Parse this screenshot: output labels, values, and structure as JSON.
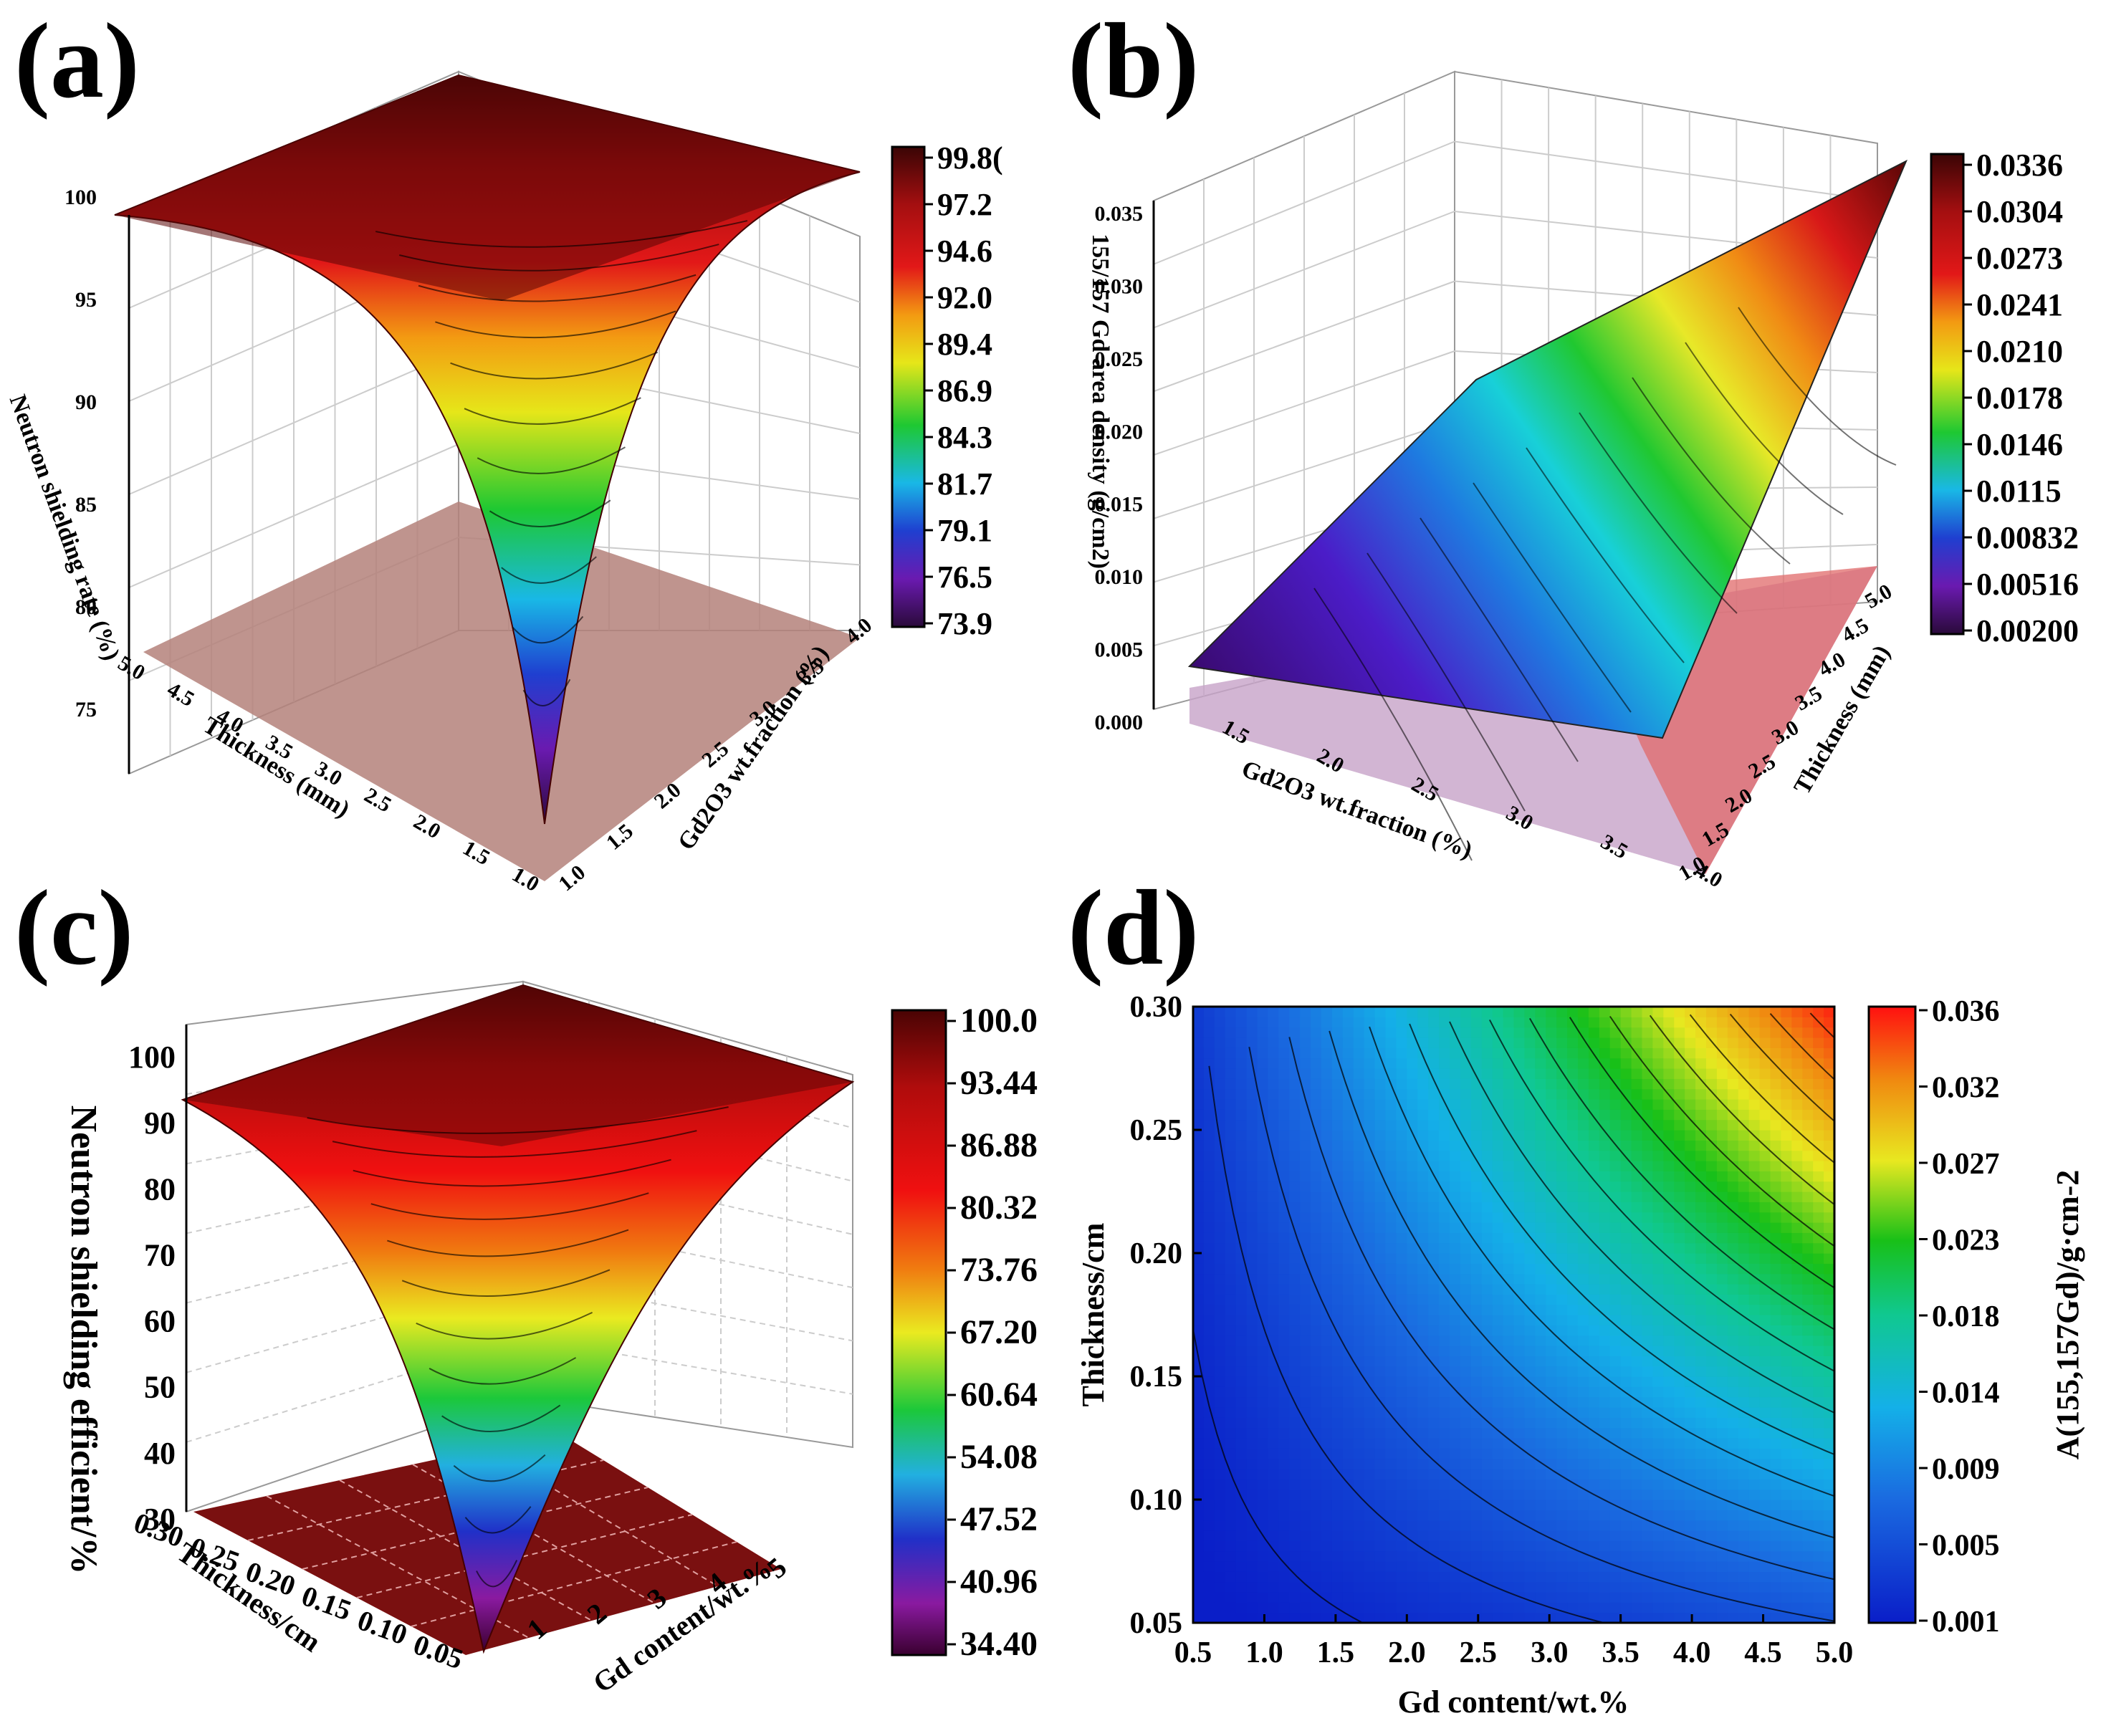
{
  "panels": {
    "a": {
      "label": "(a)",
      "zlabel": "Neutron shielding rate (%)",
      "xlabel": "Thickness (mm)",
      "ylabel": "Gd2O3 wt.fraction (%)",
      "z_ticks": [
        "100",
        "95",
        "90",
        "85",
        "80",
        "75"
      ],
      "x_ticks": [
        "5.0",
        "4.5",
        "4.0",
        "3.5",
        "3.0",
        "2.5",
        "2.0",
        "1.5",
        "1.0"
      ],
      "y_ticks": [
        "1.0",
        "1.5",
        "2.0",
        "2.5",
        "3.0",
        "3.5",
        "4.0"
      ],
      "colorbar": [
        "99.8(",
        "97.2",
        "94.6",
        "92.0",
        "89.4",
        "86.9",
        "84.3",
        "81.7",
        "79.1",
        "76.5",
        "73.9"
      ]
    },
    "b": {
      "label": "(b)",
      "zlabel": "155/157 Gd area density (g/cm2)",
      "xlabel": "Gd2O3 wt.fraction (%)",
      "ylabel": "Thickness (mm)",
      "z_ticks": [
        "0.035",
        "0.030",
        "0.025",
        "0.020",
        "0.015",
        "0.010",
        "0.005",
        "0.000"
      ],
      "x_ticks": [
        "1.5",
        "2.0",
        "2.5",
        "3.0",
        "3.5",
        "4.0"
      ],
      "y_ticks": [
        "1.0",
        "1.5",
        "2.0",
        "2.5",
        "3.0",
        "3.5",
        "4.0",
        "4.5",
        "5.0"
      ],
      "colorbar": [
        "0.0336",
        "0.0304",
        "0.0273",
        "0.0241",
        "0.0210",
        "0.0178",
        "0.0146",
        "0.0115",
        "0.00832",
        "0.00516",
        "0.00200"
      ]
    },
    "c": {
      "label": "(c)",
      "zlabel": "Neutron shielding efficient/%",
      "xlabel": "Thickness/cm",
      "ylabel": "Gd content/wt.%",
      "z_ticks": [
        "100",
        "90",
        "80",
        "70",
        "60",
        "50",
        "40",
        "30"
      ],
      "x_ticks": [
        "0.30",
        "0.25",
        "0.20",
        "0.15",
        "0.10",
        "0.05"
      ],
      "y_ticks": [
        "1",
        "2",
        "3",
        "4",
        "5"
      ],
      "colorbar": [
        "100.0",
        "93.44",
        "86.88",
        "80.32",
        "73.76",
        "67.20",
        "60.64",
        "54.08",
        "47.52",
        "40.96",
        "34.40"
      ]
    },
    "d": {
      "label": "(d)",
      "xlabel": "Gd content/wt.%",
      "ylabel": "Thickness/cm",
      "cblabel": "A(155,157Gd)/g·cm-2",
      "x_ticks": [
        "0.5",
        "1.0",
        "1.5",
        "2.0",
        "2.5",
        "3.0",
        "3.5",
        "4.0",
        "4.5",
        "5.0"
      ],
      "y_ticks": [
        "0.30",
        "0.25",
        "0.20",
        "0.15",
        "0.10",
        "0.05"
      ],
      "colorbar": [
        "0.036",
        "0.032",
        "0.027",
        "0.023",
        "0.018",
        "0.014",
        "0.009",
        "0.005",
        "0.001"
      ]
    }
  },
  "chart_data": [
    {
      "panel": "a",
      "type": "surface3d",
      "title": "",
      "x_name": "Thickness (mm)",
      "x_range": [
        1.0,
        5.0
      ],
      "y_name": "Gd2O3 wt.fraction (%)",
      "y_range": [
        1.0,
        4.0
      ],
      "z_name": "Neutron shielding rate (%)",
      "z_range": [
        73.9,
        99.8
      ],
      "corner_values": {
        "x1_y1": 73.9,
        "x5_y1": 98.6,
        "x1_y4": 98.6,
        "x5_y4": 99.8
      }
    },
    {
      "panel": "b",
      "type": "surface3d",
      "x_name": "Gd2O3 wt.fraction (%)",
      "x_range": [
        1.0,
        4.0
      ],
      "y_name": "Thickness (mm)",
      "y_range": [
        1.0,
        5.0
      ],
      "z_name": "155/157 Gd area density (g/cm2)",
      "z_range": [
        0.002,
        0.0336
      ],
      "corner_values": {
        "x1_y1": 0.002,
        "x4_y1": 0.0084,
        "x1_y5": 0.0084,
        "x4_y5": 0.0336
      }
    },
    {
      "panel": "c",
      "type": "surface3d",
      "x_name": "Thickness/cm",
      "x_range": [
        0.05,
        0.3
      ],
      "y_name": "Gd content/wt.%",
      "y_range": [
        0.5,
        5.0
      ],
      "z_name": "Neutron shielding efficient/%",
      "z_range": [
        34.4,
        100.0
      ],
      "corner_values": {
        "x005_y05": 34.4,
        "x030_y05": 92.0,
        "x005_y5": 92.0,
        "x030_y5": 100.0
      }
    },
    {
      "panel": "d",
      "type": "heatmap",
      "x_name": "Gd content/wt.%",
      "x_range": [
        0.5,
        5.0
      ],
      "y_name": "Thickness/cm",
      "y_range": [
        0.05,
        0.3
      ],
      "z_name": "A(155,157Gd)/g·cm-2",
      "z_range": [
        0.001,
        0.036
      ],
      "relation": "z proportional to x*y",
      "contour_levels": [
        0.002,
        0.004,
        0.006,
        0.008,
        0.01,
        0.012,
        0.014,
        0.016,
        0.018,
        0.02,
        0.022,
        0.024,
        0.026,
        0.028,
        0.03,
        0.032,
        0.034
      ]
    }
  ]
}
